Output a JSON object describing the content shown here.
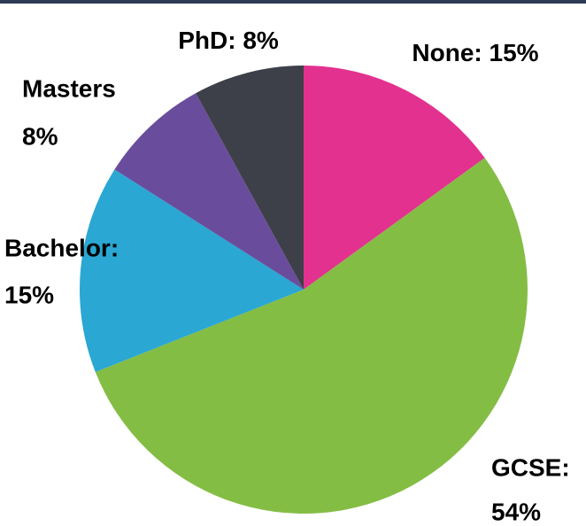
{
  "chart_data": {
    "type": "pie",
    "categories": [
      "None:",
      "GCSE:",
      "Bachelor:",
      "Masters",
      "PhD:"
    ],
    "values": [
      15,
      54,
      15,
      8,
      8
    ],
    "value_labels": [
      "15%",
      "54%",
      "15%",
      "8%",
      "8%"
    ],
    "colors": [
      "#e3318f",
      "#84bd44",
      "#2aa7d3",
      "#6a4c9c",
      "#3d4048"
    ],
    "start_angle": 0,
    "direction": "clockwise"
  }
}
